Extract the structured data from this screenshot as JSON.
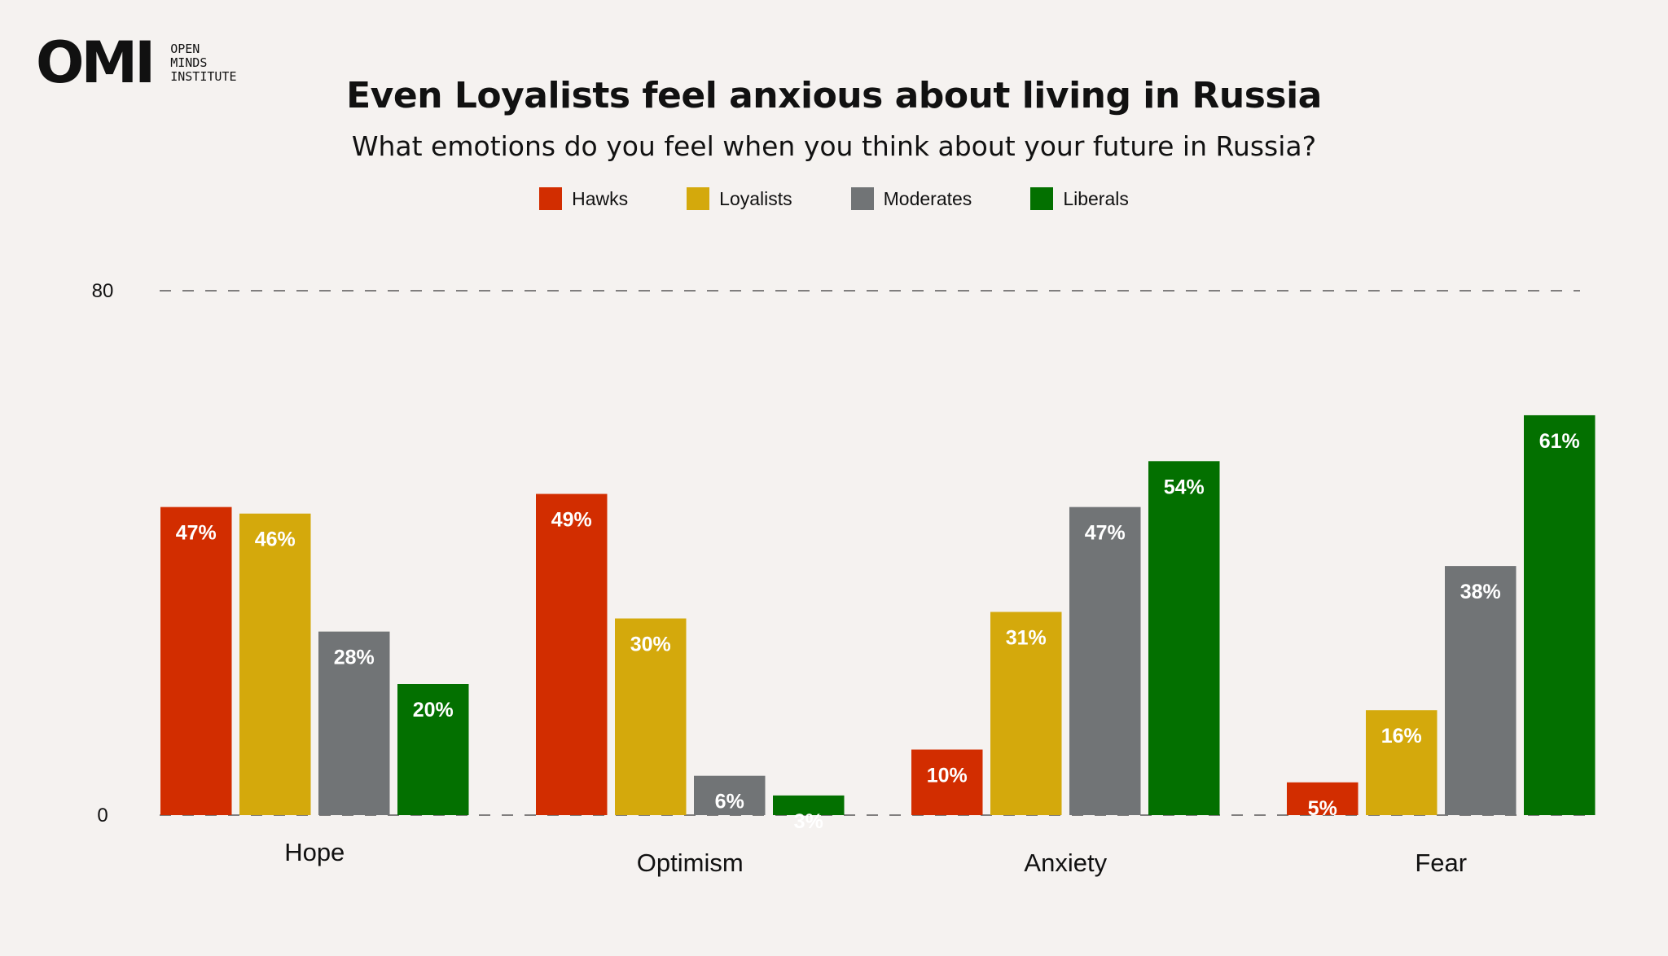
{
  "logo": {
    "mark": "OMI",
    "lines": [
      "OPEN",
      "MINDS",
      "INSTITUTE"
    ]
  },
  "chart_data": {
    "type": "bar",
    "title": "Even Loyalists feel anxious about living in Russia",
    "subtitle": "What emotions do you feel when you think about your future in Russia?",
    "categories": [
      "Hope",
      "Optimism",
      "Anxiety",
      "Fear"
    ],
    "series": [
      {
        "name": "Hawks",
        "color": "#d22d00",
        "values": [
          47,
          49,
          10,
          5
        ]
      },
      {
        "name": "Loyalists",
        "color": "#d4a90c",
        "values": [
          46,
          30,
          31,
          16
        ]
      },
      {
        "name": "Moderates",
        "color": "#717476",
        "values": [
          28,
          6,
          47,
          38
        ]
      },
      {
        "name": "Liberals",
        "color": "#037000",
        "values": [
          20,
          3,
          54,
          61
        ]
      }
    ],
    "value_suffix": "%",
    "ylim": [
      0,
      80
    ],
    "y_ticks": [
      0,
      80
    ],
    "gridlines": "dashed",
    "legend_position": "top-center"
  }
}
